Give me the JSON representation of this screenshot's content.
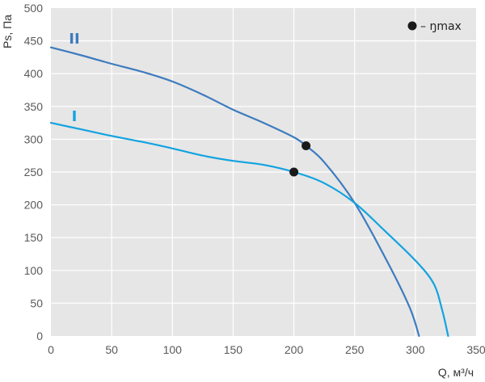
{
  "chart_data": {
    "type": "line",
    "xlabel": "Q, м³/ч",
    "ylabel": "Ps, Па",
    "xlim": [
      0,
      350
    ],
    "ylim": [
      0,
      500
    ],
    "xticks": [
      0,
      50,
      100,
      150,
      200,
      250,
      300,
      350
    ],
    "yticks": [
      0,
      50,
      100,
      150,
      200,
      250,
      300,
      350,
      400,
      450,
      500
    ],
    "grid": true,
    "background": "#e6e6e6",
    "legend": {
      "position": "top-right",
      "marker_color": "#1a1a1a",
      "text": "– ŋmax"
    },
    "series": [
      {
        "name": "II",
        "color": "#3d7bbf",
        "x": [
          0,
          25,
          50,
          75,
          100,
          125,
          150,
          175,
          200,
          210,
          225,
          250,
          275,
          295,
          303
        ],
        "y": [
          440,
          428,
          415,
          403,
          388,
          368,
          345,
          325,
          303,
          290,
          265,
          203,
          120,
          45,
          0
        ],
        "eta_max": {
          "x": 210,
          "y": 290
        }
      },
      {
        "name": "I",
        "color": "#12a3e0",
        "x": [
          0,
          25,
          50,
          75,
          100,
          125,
          150,
          175,
          200,
          225,
          250,
          275,
          300,
          315,
          322,
          327
        ],
        "y": [
          325,
          315,
          305,
          296,
          286,
          275,
          267,
          261,
          250,
          233,
          203,
          160,
          115,
          80,
          40,
          0
        ],
        "eta_max": {
          "x": 200,
          "y": 250
        }
      }
    ]
  }
}
